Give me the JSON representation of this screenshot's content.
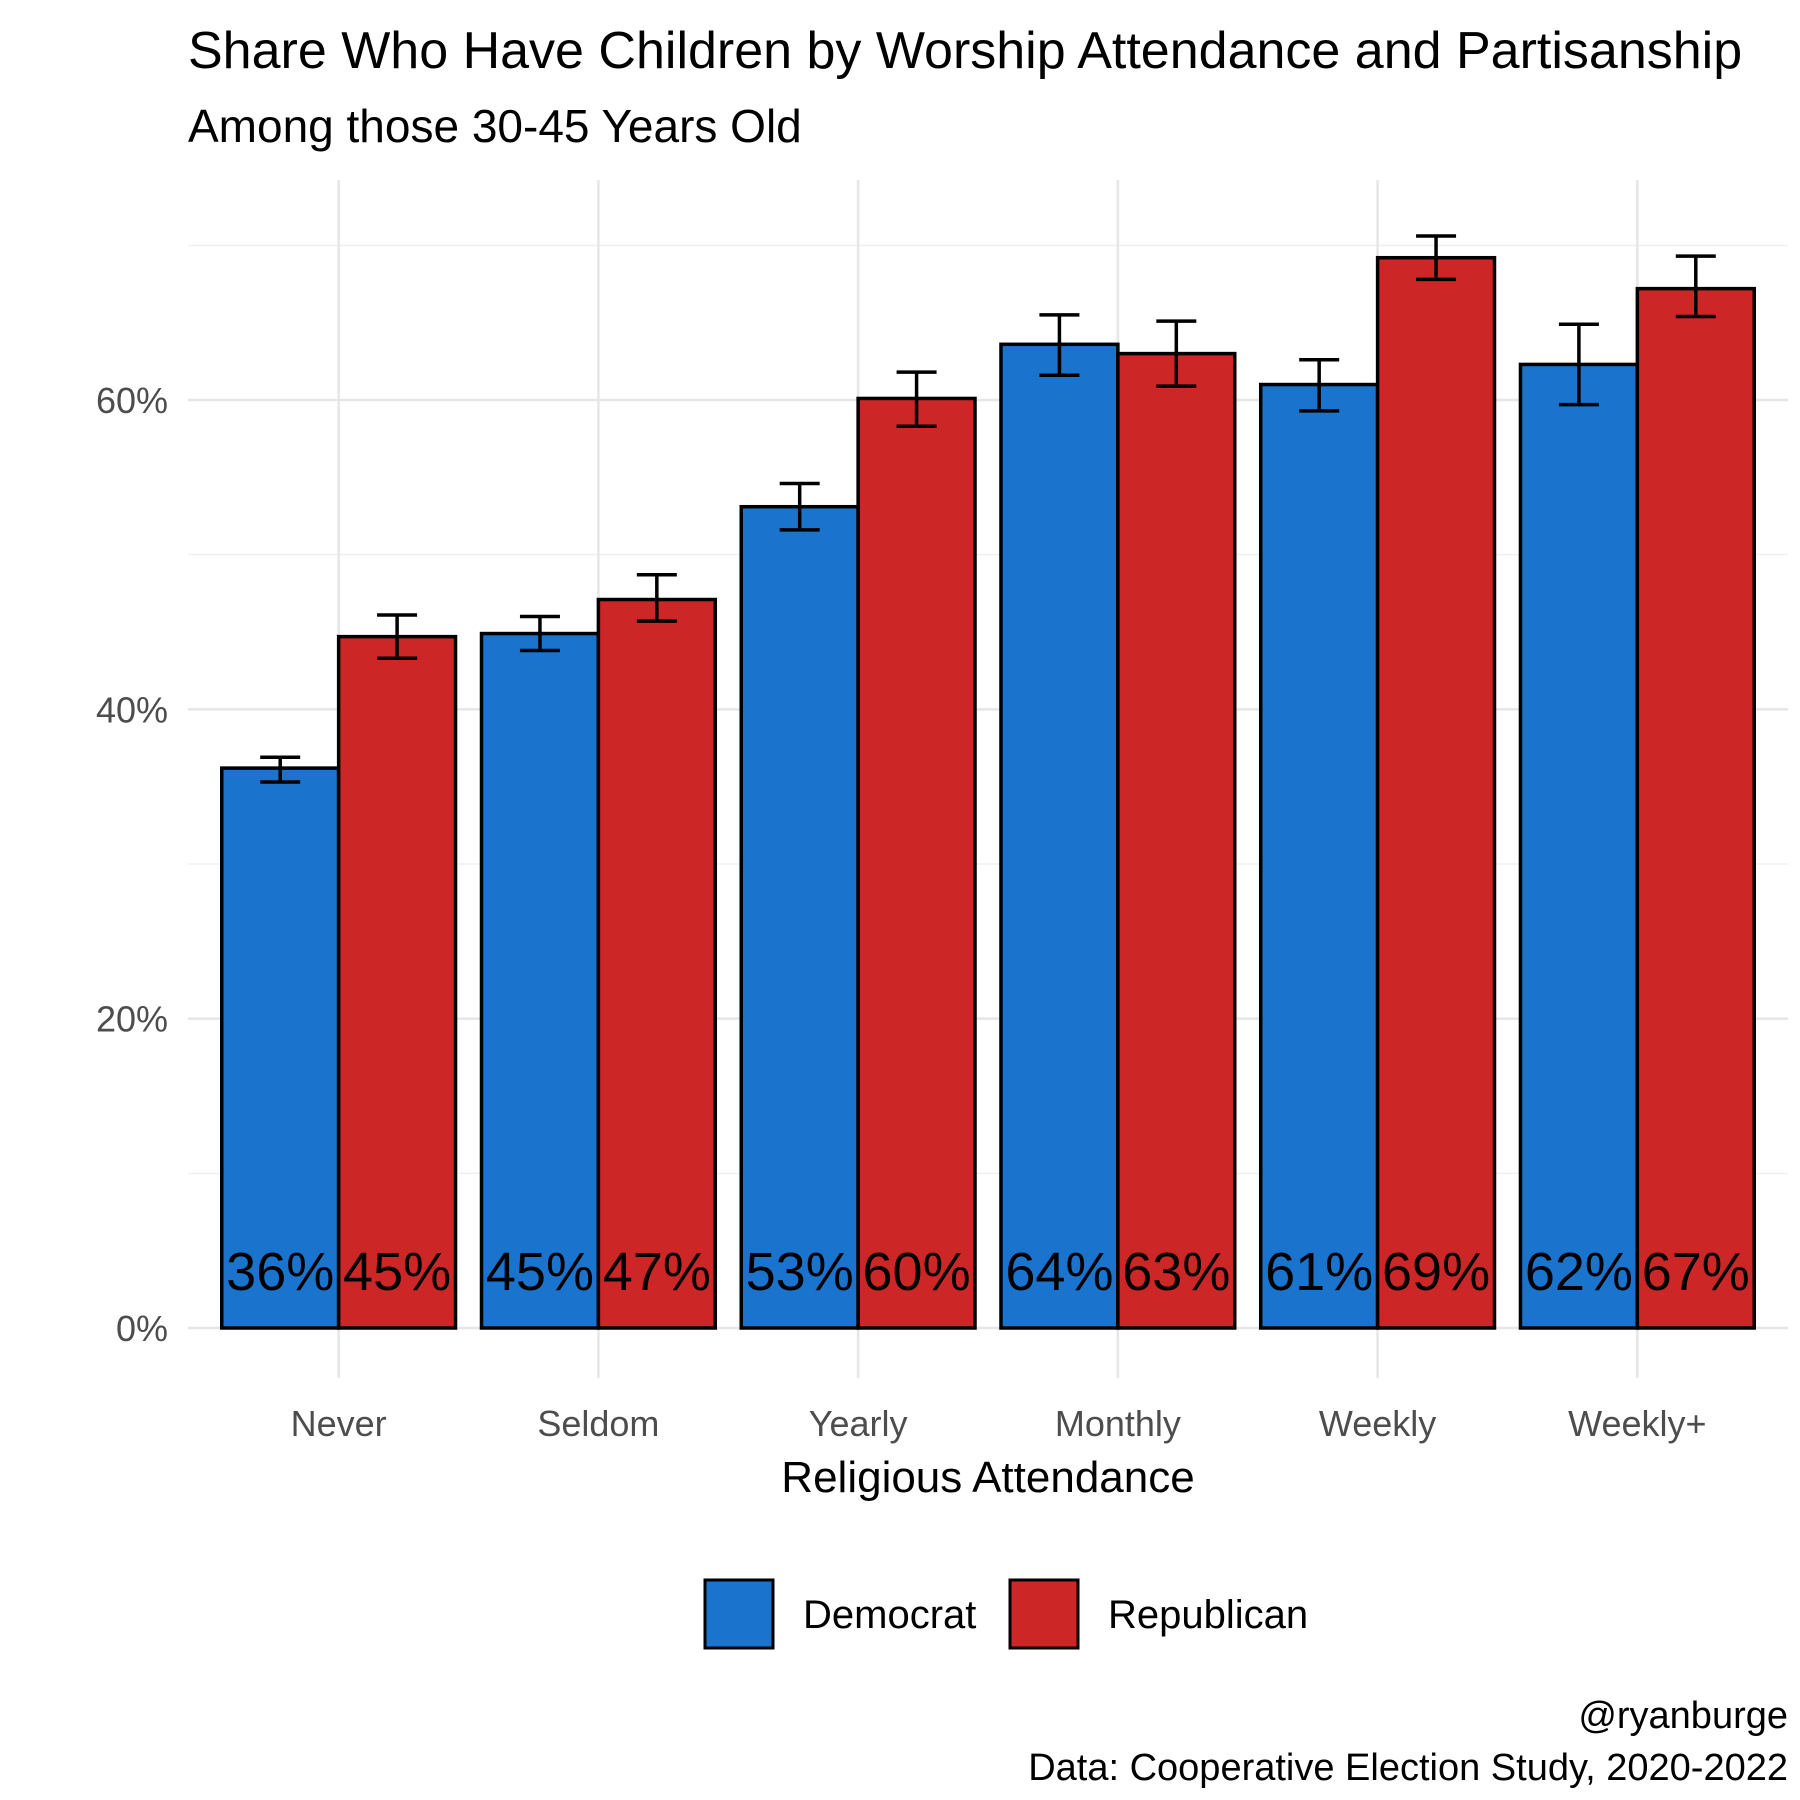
{
  "title": "Share Who Have Children by Worship Attendance and Partisanship",
  "subtitle": "Among those 30-45 Years Old",
  "caption": [
    "@ryanburge",
    "Data: Cooperative Election Study, 2020-2022"
  ],
  "colors": {
    "Democrat": "#1a73cc",
    "Republican": "#cc2627"
  },
  "chart_data": {
    "type": "bar",
    "title": "Share Who Have Children by Worship Attendance and Partisanship",
    "subtitle": "Among those 30-45 Years Old",
    "xlabel": "Religious Attendance",
    "ylabel": "",
    "categories": [
      "Never",
      "Seldom",
      "Yearly",
      "Monthly",
      "Weekly",
      "Weekly+"
    ],
    "ylim": [
      0,
      0.74
    ],
    "yticks": [
      0,
      0.2,
      0.4,
      0.6
    ],
    "ytick_labels": [
      "0%",
      "20%",
      "40%",
      "60%"
    ],
    "grid": true,
    "legend_position": "bottom",
    "series": [
      {
        "name": "Democrat",
        "values": [
          0.362,
          0.449,
          0.531,
          0.636,
          0.61,
          0.623
        ],
        "labels": [
          "36%",
          "45%",
          "53%",
          "64%",
          "61%",
          "62%"
        ],
        "ci_low": [
          0.353,
          0.438,
          0.516,
          0.616,
          0.593,
          0.597
        ],
        "ci_high": [
          0.369,
          0.46,
          0.546,
          0.655,
          0.626,
          0.649
        ]
      },
      {
        "name": "Republican",
        "values": [
          0.447,
          0.471,
          0.601,
          0.63,
          0.692,
          0.672
        ],
        "labels": [
          "45%",
          "47%",
          "60%",
          "63%",
          "69%",
          "67%"
        ],
        "ci_low": [
          0.433,
          0.457,
          0.583,
          0.609,
          0.678,
          0.654
        ],
        "ci_high": [
          0.461,
          0.487,
          0.618,
          0.651,
          0.706,
          0.693
        ]
      }
    ]
  }
}
